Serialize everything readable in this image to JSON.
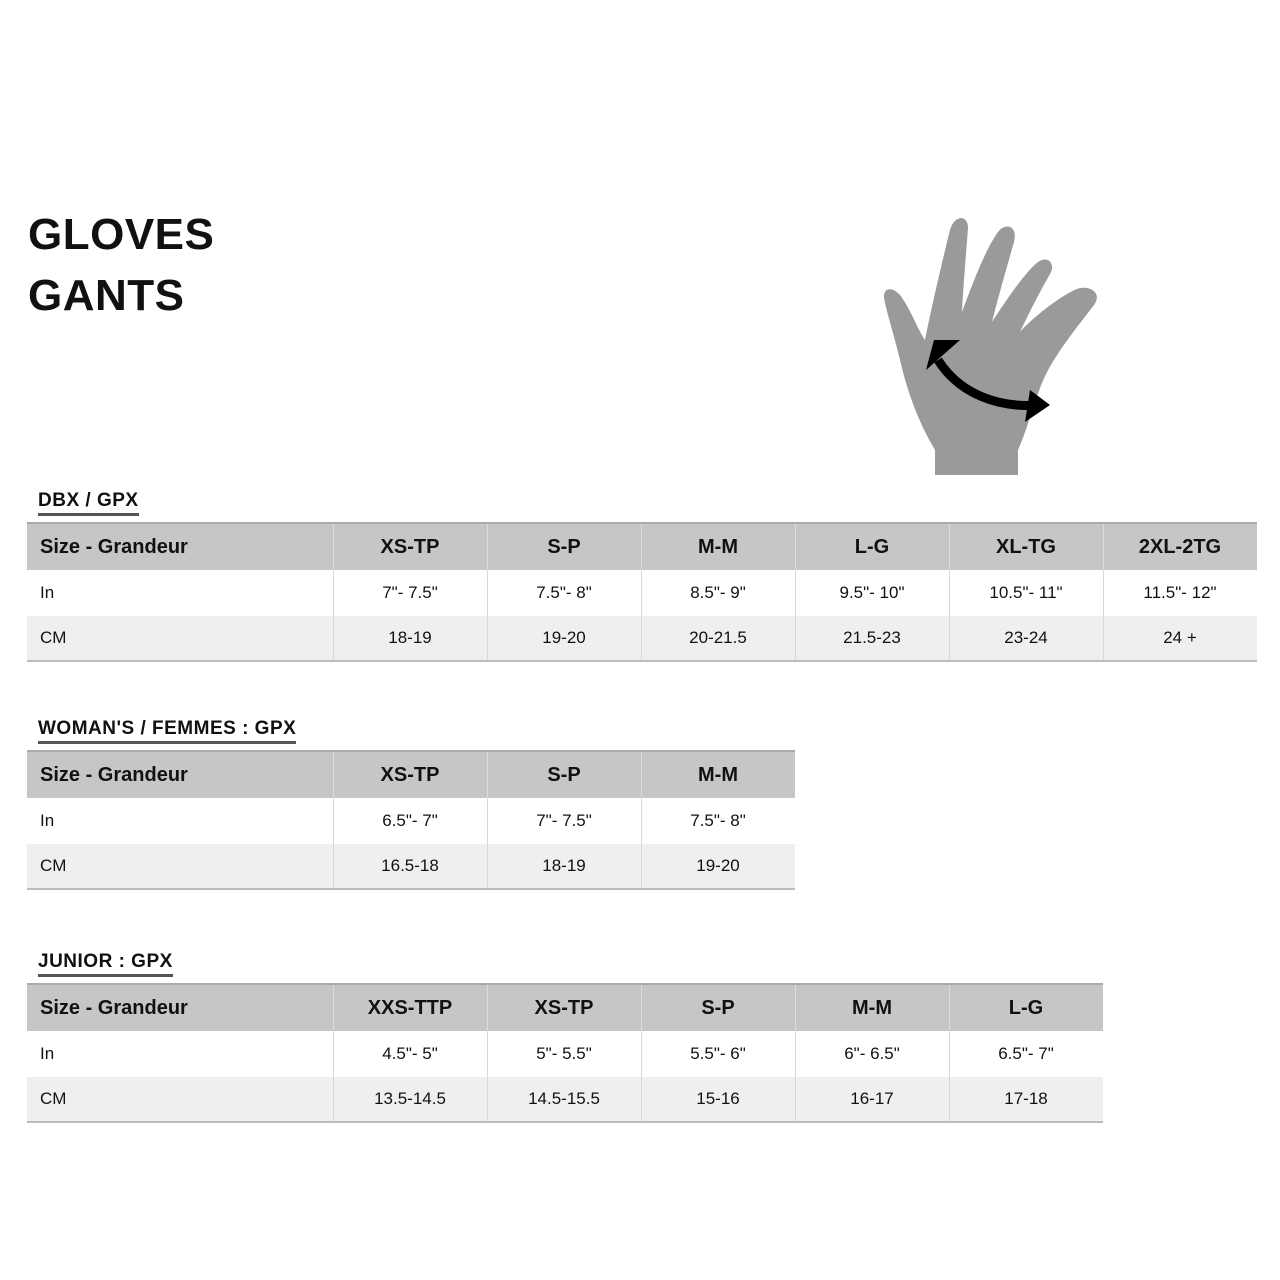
{
  "title": {
    "line1": "GLOVES",
    "line2": "GANTS"
  },
  "hand_icon": {
    "icon": "hand-measurement-icon",
    "fill": "#9a9a9a",
    "arrow": "#000000"
  },
  "colors": {
    "header_bg": "#c6c6c6",
    "stripe_bg": "#efefef"
  },
  "tables": [
    {
      "title": "DBX / GPX",
      "header": [
        "Size - Grandeur",
        "XS-TP",
        "S-P",
        "M-M",
        "L-G",
        "XL-TG",
        "2XL-2TG"
      ],
      "rows": [
        [
          "In",
          "7\"- 7.5\"",
          "7.5\"- 8\"",
          "8.5\"- 9\"",
          "9.5\"- 10\"",
          "10.5\"- 11\"",
          "11.5\"- 12\""
        ],
        [
          "CM",
          "18-19",
          "19-20",
          "20-21.5",
          "21.5-23",
          "23-24",
          "24 +"
        ]
      ]
    },
    {
      "title": "WOMAN'S / FEMMES : GPX",
      "header": [
        "Size - Grandeur",
        "XS-TP",
        "S-P",
        "M-M"
      ],
      "rows": [
        [
          "In",
          "6.5\"- 7\"",
          "7\"- 7.5\"",
          "7.5\"- 8\""
        ],
        [
          "CM",
          "16.5-18",
          "18-19",
          "19-20"
        ]
      ]
    },
    {
      "title": "JUNIOR : GPX",
      "header": [
        "Size - Grandeur",
        "XXS-TTP",
        "XS-TP",
        "S-P",
        "M-M",
        "L-G"
      ],
      "rows": [
        [
          "In",
          "4.5\"- 5\"",
          "5\"- 5.5\"",
          "5.5\"- 6\"",
          "6\"- 6.5\"",
          "6.5\"- 7\""
        ],
        [
          "CM",
          "13.5-14.5",
          "14.5-15.5",
          "15-16",
          "16-17",
          "17-18"
        ]
      ]
    }
  ]
}
